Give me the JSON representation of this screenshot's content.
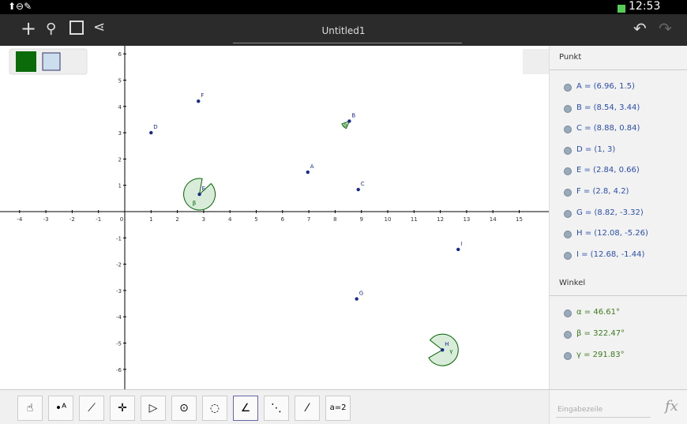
{
  "status_bar": {
    "time": "12:53"
  },
  "action_bar": {
    "title": "Untitled1"
  },
  "graphics": {
    "xticks": [
      -4,
      -3,
      -2,
      -1,
      0,
      1,
      2,
      3,
      4,
      5,
      6,
      7,
      8,
      9,
      10,
      11,
      12,
      13,
      14,
      15
    ],
    "yticks": [
      -6,
      -5,
      -4,
      -3,
      -2,
      -1,
      1,
      2,
      3,
      4,
      5,
      6
    ],
    "points": [
      {
        "label": "A",
        "x": 6.96,
        "y": 1.5
      },
      {
        "label": "B",
        "x": 8.54,
        "y": 3.44
      },
      {
        "label": "C",
        "x": 8.88,
        "y": 0.84
      },
      {
        "label": "D",
        "x": 1,
        "y": 3
      },
      {
        "label": "E",
        "x": 2.84,
        "y": 0.66
      },
      {
        "label": "F",
        "x": 2.8,
        "y": 4.2
      },
      {
        "label": "G",
        "x": 8.82,
        "y": -3.32
      },
      {
        "label": "H",
        "x": 12.08,
        "y": -5.26
      },
      {
        "label": "I",
        "x": 12.68,
        "y": -1.44
      }
    ],
    "angles": [
      {
        "label": "α",
        "point": 1,
        "degrees": 46.61
      },
      {
        "label": "β",
        "point": 4,
        "degrees": 322.47
      },
      {
        "label": "γ",
        "point": 7,
        "degrees": 291.83
      }
    ]
  },
  "algebra": {
    "sections": [
      {
        "title": "Punkt",
        "items": [
          "A = (6.96, 1.5)",
          "B = (8.54, 3.44)",
          "C = (8.88, 0.84)",
          "D = (1, 3)",
          "E = (2.84, 0.66)",
          "F = (2.8, 4.2)",
          "G = (8.82, -3.32)",
          "H = (12.08, -5.26)",
          "I = (12.68, -1.44)"
        ]
      },
      {
        "title": "Winkel",
        "items": [
          "α = 46.61°",
          "β = 322.47°",
          "γ = 291.83°"
        ]
      }
    ]
  },
  "toolbar": {
    "last_tool": "a=2"
  },
  "input_bar": {
    "placeholder": "Eingabezeile",
    "button": "fx"
  }
}
